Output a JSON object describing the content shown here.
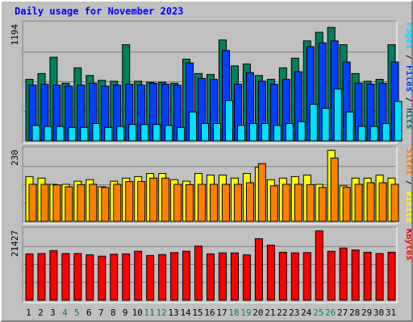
{
  "chart_data": {
    "type": "bar",
    "title": "Daily usage for November 2023",
    "categories": [
      "1",
      "2",
      "3",
      "4",
      "5",
      "6",
      "7",
      "8",
      "9",
      "10",
      "11",
      "12",
      "13",
      "14",
      "15",
      "16",
      "17",
      "18",
      "19",
      "20",
      "21",
      "22",
      "23",
      "24",
      "25",
      "26",
      "27",
      "28",
      "29",
      "30",
      "31"
    ],
    "weekend_days": [
      "4",
      "5",
      "11",
      "12",
      "18",
      "19",
      "25",
      "26"
    ],
    "colors": {
      "hits": "#00805c",
      "files": "#0040ff",
      "pages": "#00e0ff",
      "visits": "#ffff00",
      "sites": "#ff8000",
      "kbytes": "#ff0000",
      "weekday_label": "#000000",
      "weekend_label": "#00805c",
      "title": "#0000ff"
    },
    "panels": [
      {
        "name": "requests",
        "ymax_label": "1194",
        "ylim": [
          0,
          1194
        ],
        "series": [
          {
            "name": "Hits",
            "values": [
              640,
              700,
              870,
              600,
              760,
              680,
              630,
              620,
              1000,
              620,
              610,
              610,
              600,
              850,
              700,
              690,
              1050,
              780,
              800,
              680,
              640,
              760,
              860,
              1040,
              1130,
              1180,
              1000,
              700,
              620,
              640,
              1000
            ]
          },
          {
            "name": "Files",
            "values": [
              580,
              590,
              580,
              570,
              580,
              600,
              570,
              580,
              590,
              580,
              600,
              590,
              580,
              810,
              650,
              640,
              940,
              590,
              710,
              620,
              590,
              640,
              720,
              980,
              1020,
              1040,
              820,
              600,
              590,
              600,
              820
            ]
          },
          {
            "name": "Pages",
            "values": [
              160,
              150,
              150,
              140,
              140,
              180,
              140,
              150,
              170,
              170,
              170,
              160,
              140,
              300,
              180,
              180,
              420,
              160,
              180,
              180,
              160,
              180,
              200,
              380,
              340,
              540,
              300,
              150,
              150,
              180,
              410
            ]
          }
        ]
      },
      {
        "name": "visitors",
        "ymax_label": "230",
        "ylim": [
          0,
          230
        ],
        "series": [
          {
            "name": "Visits",
            "values": [
              145,
              140,
              120,
              120,
              130,
              135,
              112,
              130,
              140,
              145,
              155,
              155,
              135,
              130,
              155,
              150,
              150,
              140,
              155,
              175,
              135,
              140,
              145,
              150,
              120,
              230,
              115,
              140,
              140,
              150,
              140
            ]
          },
          {
            "name": "Sites",
            "values": [
              120,
              120,
              118,
              112,
              119,
              120,
              110,
              120,
              129,
              129,
              140,
              140,
              120,
              119,
              120,
              120,
              120,
              120,
              125,
              187,
              115,
              120,
              120,
              119,
              110,
              205,
              110,
              120,
              125,
              125,
              120
            ]
          }
        ]
      },
      {
        "name": "volume",
        "ymax_label": "21427",
        "ylim": [
          0,
          21427
        ],
        "series": [
          {
            "name": "KBytes",
            "values": [
              14300,
              14400,
              15300,
              14400,
              14400,
              14000,
              13600,
              14200,
              14300,
              15100,
              13800,
              14100,
              14700,
              15100,
              16700,
              14300,
              14600,
              14600,
              14000,
              19000,
              17000,
              14800,
              14600,
              14700,
              21400,
              15100,
              16100,
              15500,
              14800,
              14400,
              14800
            ]
          }
        ]
      }
    ],
    "side_labels": [
      {
        "panel": "requests",
        "parts": [
          {
            "text": "Pages",
            "color": "#00e0ff"
          },
          {
            "text": " / ",
            "color": "#000000"
          },
          {
            "text": "Files",
            "color": "#0040ff"
          },
          {
            "text": " / ",
            "color": "#000000"
          },
          {
            "text": "Hits",
            "color": "#00805c"
          }
        ]
      },
      {
        "panel": "visitors",
        "parts": [
          {
            "text": "Sites",
            "color": "#ff8000"
          },
          {
            "text": " / ",
            "color": "#000000"
          },
          {
            "text": "Visits",
            "color": "#ffff00"
          }
        ]
      },
      {
        "panel": "volume",
        "parts": [
          {
            "text": "KBytes",
            "color": "#ff0000"
          }
        ]
      }
    ]
  }
}
